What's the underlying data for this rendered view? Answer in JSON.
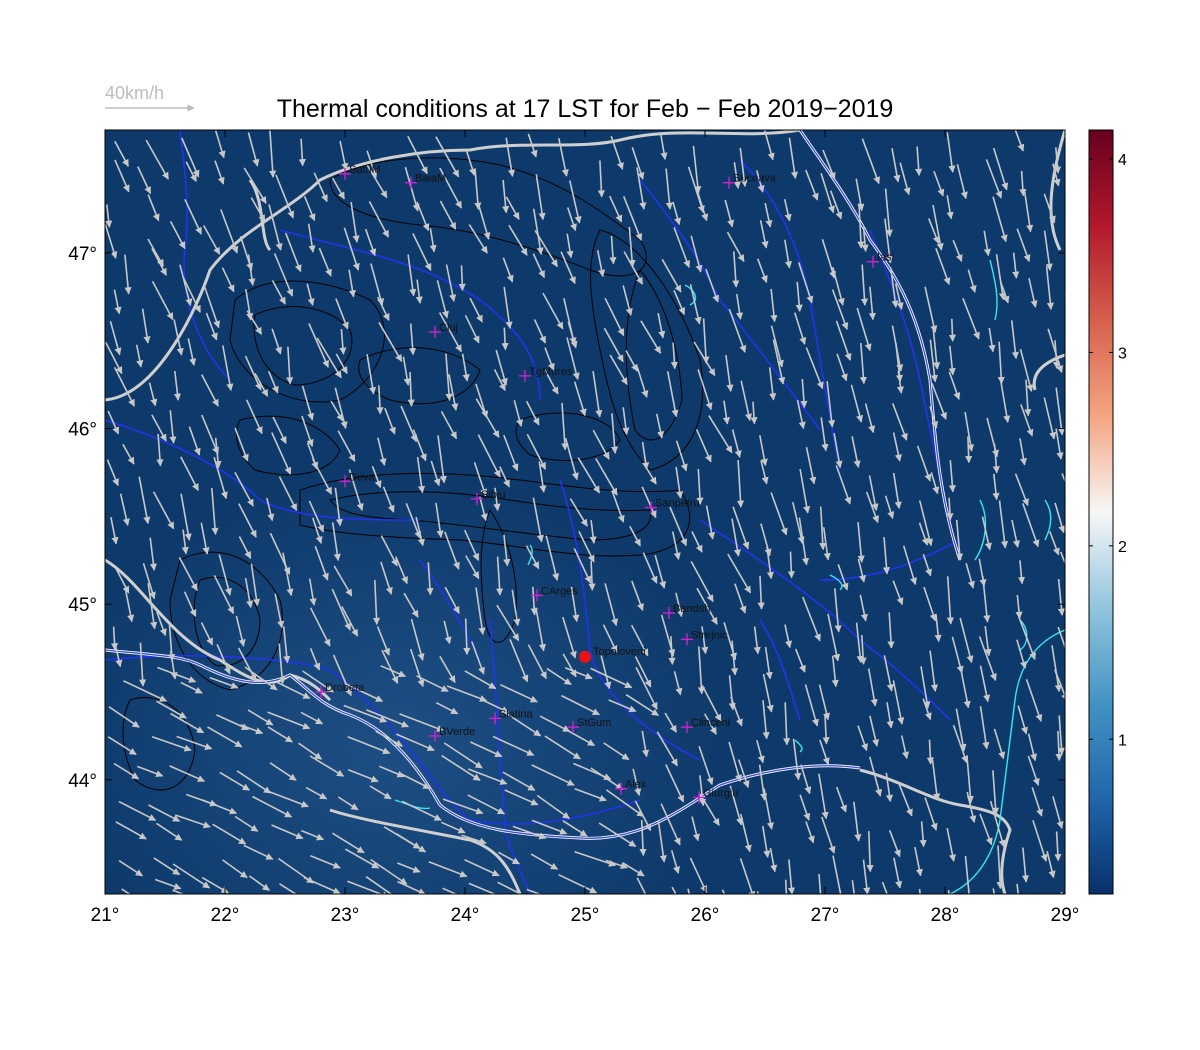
{
  "title": "Thermal conditions at 17 LST for Feb − Feb  2019−2019",
  "wind_scale": {
    "label": "40km/h"
  },
  "map": {
    "lon_range": [
      21,
      29
    ],
    "lat_range": [
      43.35,
      47.7
    ],
    "x_ticks": [
      {
        "value": 21,
        "label": "21°"
      },
      {
        "value": 22,
        "label": "22°"
      },
      {
        "value": 23,
        "label": "23°"
      },
      {
        "value": 24,
        "label": "24°"
      },
      {
        "value": 25,
        "label": "25°"
      },
      {
        "value": 26,
        "label": "26°"
      },
      {
        "value": 27,
        "label": "27°"
      },
      {
        "value": 28,
        "label": "28°"
      },
      {
        "value": 29,
        "label": "29°"
      }
    ],
    "y_ticks": [
      {
        "value": 44,
        "label": "44°"
      },
      {
        "value": 45,
        "label": "45°"
      },
      {
        "value": 46,
        "label": "46°"
      },
      {
        "value": 47,
        "label": "47°"
      }
    ],
    "colors": {
      "background": "#0e3a6b",
      "lowland_tint": "#1c4f86",
      "rivers": "#2233ee",
      "borders": "#cfcfcf",
      "coast": "#36e8ee",
      "wind_arrows": "#c8c8c8",
      "contours": "#000000",
      "station_marker": "#cc22cc",
      "highlight_point": "#ee1111"
    },
    "stations": [
      {
        "name": "SatuM",
        "lon": 23.0,
        "lat": 47.45
      },
      {
        "name": "BaiaM",
        "lon": 23.55,
        "lat": 47.4
      },
      {
        "name": "Suceava",
        "lon": 26.2,
        "lat": 47.4
      },
      {
        "name": "Iasi",
        "lon": 27.4,
        "lat": 46.95
      },
      {
        "name": "Cluj",
        "lon": 23.75,
        "lat": 46.55
      },
      {
        "name": "TgMures",
        "lon": 24.5,
        "lat": 46.3
      },
      {
        "name": "Deva",
        "lon": 23.0,
        "lat": 45.7
      },
      {
        "name": "Sibiu",
        "lon": 24.1,
        "lat": 45.6
      },
      {
        "name": "Sanpetru",
        "lon": 25.55,
        "lat": 45.55
      },
      {
        "name": "CArges",
        "lon": 24.6,
        "lat": 45.05
      },
      {
        "name": "Bandsh",
        "lon": 25.7,
        "lat": 44.95
      },
      {
        "name": "Strejnic",
        "lon": 25.85,
        "lat": 44.8
      },
      {
        "name": "Drobeta",
        "lon": 22.8,
        "lat": 44.5
      },
      {
        "name": "Slatina",
        "lon": 24.25,
        "lat": 44.35
      },
      {
        "name": "StGum",
        "lon": 24.9,
        "lat": 44.3
      },
      {
        "name": "Clinceni",
        "lon": 25.85,
        "lat": 44.3
      },
      {
        "name": "BVerde",
        "lon": 23.75,
        "lat": 44.25
      },
      {
        "name": "Alex",
        "lon": 25.3,
        "lat": 43.95
      },
      {
        "name": "Giurgiu",
        "lon": 25.95,
        "lat": 43.9
      }
    ],
    "highlight": {
      "name": "Topoloveni",
      "lon": 25.0,
      "lat": 44.7
    }
  },
  "colorbar": {
    "range": [
      0.2,
      4.15
    ],
    "ticks": [
      {
        "value": 1,
        "label": "1"
      },
      {
        "value": 2,
        "label": "2"
      },
      {
        "value": 3,
        "label": "3"
      },
      {
        "value": 4,
        "label": "4"
      }
    ],
    "colors": [
      "#08306b",
      "#2166ac",
      "#4393c3",
      "#92c5de",
      "#f7f7f7",
      "#f4a582",
      "#d6604d",
      "#b2182b",
      "#67001f"
    ]
  }
}
